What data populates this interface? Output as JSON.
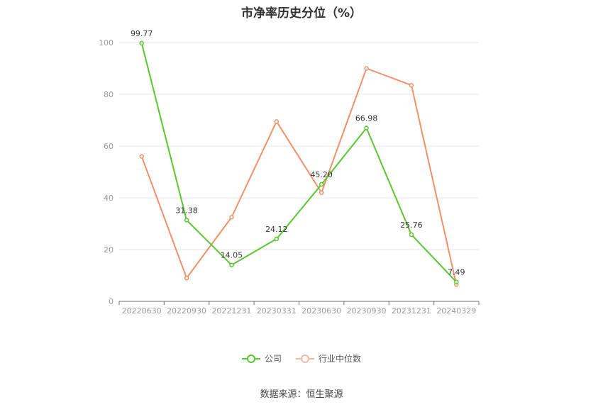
{
  "chart_data": {
    "type": "line",
    "title": "市净率历史分位（%）",
    "categories": [
      "20220630",
      "20220930",
      "20221231",
      "20230331",
      "20230630",
      "20230930",
      "20231231",
      "20240329"
    ],
    "series": [
      {
        "name": "公司",
        "values": [
          99.77,
          31.38,
          14.05,
          24.12,
          45.2,
          66.98,
          25.76,
          7.49
        ],
        "labels": [
          "99.77",
          "31.38",
          "14.05",
          "24.12",
          "45.20",
          "66.98",
          "25.76",
          "7.49"
        ],
        "color": "#5ac630"
      },
      {
        "name": "行业中位数",
        "values": [
          56.0,
          9.0,
          32.5,
          69.5,
          42.0,
          90.0,
          83.5,
          6.5
        ],
        "color": "#f0916a"
      }
    ],
    "ylim": [
      0,
      100
    ],
    "yticks": [
      0,
      20,
      40,
      60,
      80,
      100
    ],
    "grid": true,
    "legend_position": "bottom-center"
  },
  "source_text": "数据来源：恒生聚源"
}
